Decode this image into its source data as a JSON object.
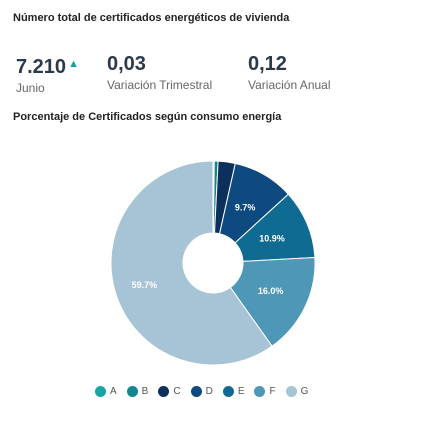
{
  "header": {
    "title": "Número total de certificados energéticos de vivienda"
  },
  "kpis": [
    {
      "value": "7.210",
      "trend": "▲",
      "label": "Junio"
    },
    {
      "value": "0,03",
      "label": "Variación Trimestral"
    },
    {
      "value": "0,12",
      "label": "Variación Anual"
    }
  ],
  "chart_data": {
    "type": "pie",
    "title": "Porcentaje de Certificados según consumo energía",
    "categories": [
      "A",
      "B",
      "C",
      "D",
      "E",
      "F",
      "G"
    ],
    "values": [
      0.2,
      0.6,
      2.7,
      9.7,
      10.9,
      16.0,
      59.7
    ],
    "data_labels": [
      "",
      "",
      "",
      "9.7%",
      "10.9%",
      "16.0%",
      "59.7%"
    ],
    "colors": [
      "#1aa5a5",
      "#12878f",
      "#0c2f5c",
      "#0e4a7f",
      "#0f6b91",
      "#4f97b6",
      "#a7c3d6"
    ],
    "legend_position": "bottom",
    "donut": true
  }
}
